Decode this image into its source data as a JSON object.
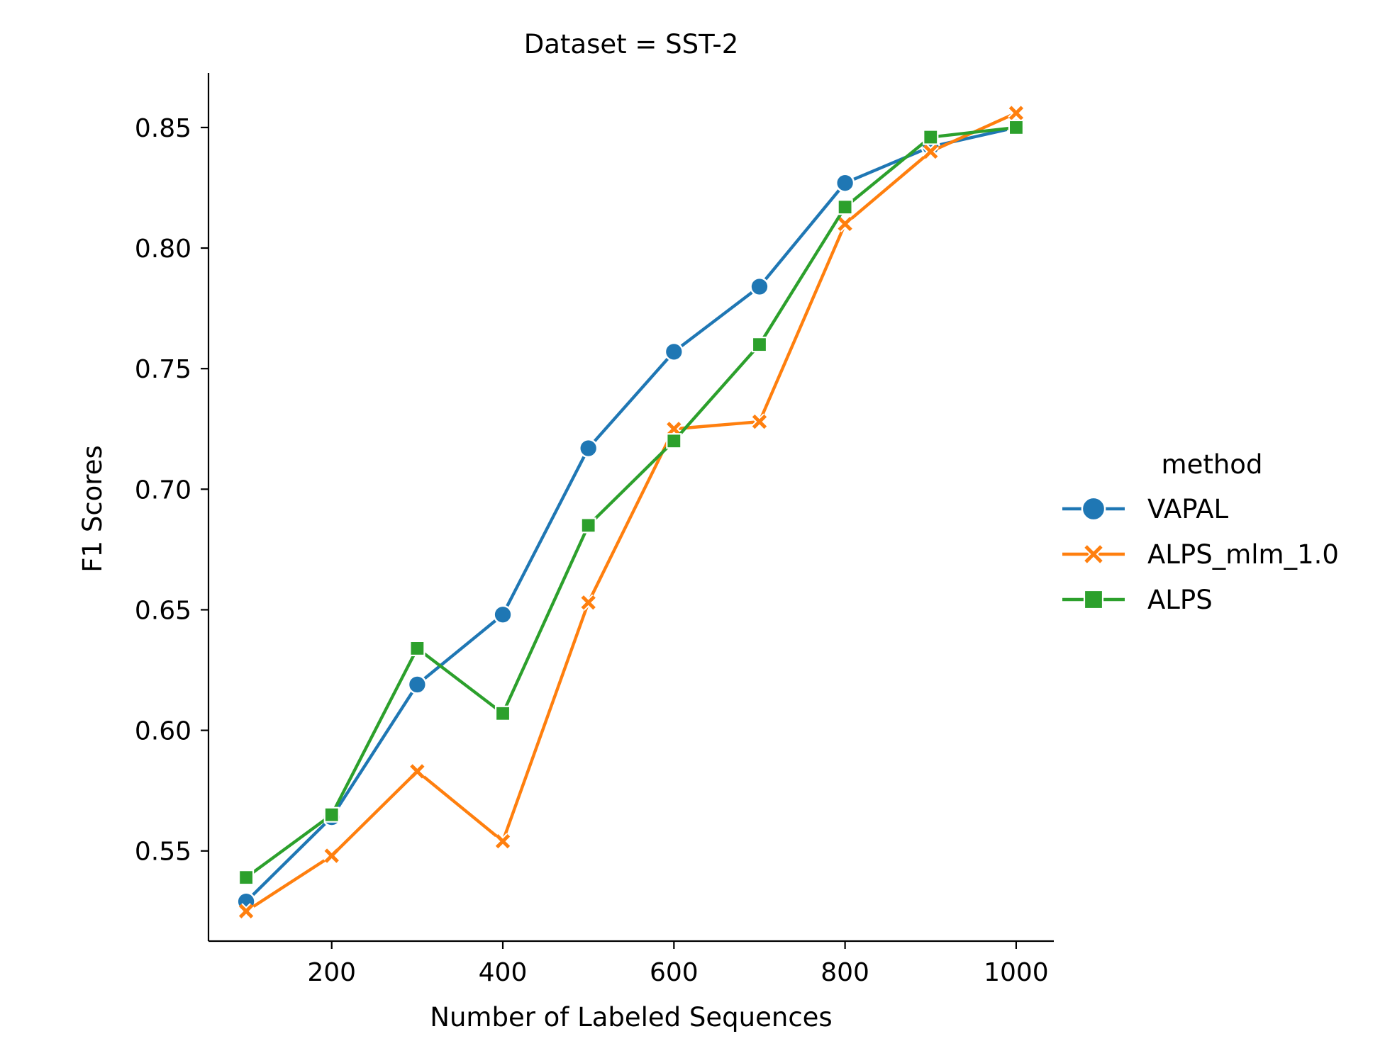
{
  "chart_data": {
    "type": "line",
    "title": "Dataset = SST-2",
    "xlabel": "Number of Labeled Sequences",
    "ylabel": "F1 Scores",
    "xlim": [
      56,
      1044
    ],
    "ylim": [
      0.5126,
      0.8726
    ],
    "xticks": [
      200,
      400,
      600,
      800,
      1000
    ],
    "yticks": [
      0.55,
      0.6,
      0.65,
      0.7,
      0.75,
      0.8,
      0.85
    ],
    "grid": false,
    "legend": {
      "title": "method",
      "placement": "right"
    },
    "x": [
      100,
      200,
      300,
      400,
      500,
      600,
      700,
      800,
      900,
      1000
    ],
    "series": [
      {
        "name": "VAPAL",
        "color": "#1f77b4",
        "marker": "circle",
        "values": [
          0.529,
          0.564,
          0.619,
          0.648,
          0.717,
          0.757,
          0.784,
          0.827,
          0.842,
          0.85
        ]
      },
      {
        "name": "ALPS_mlm_1.0",
        "color": "#ff7f0e",
        "marker": "x",
        "values": [
          0.525,
          0.548,
          0.583,
          0.554,
          0.653,
          0.725,
          0.728,
          0.81,
          0.84,
          0.856
        ]
      },
      {
        "name": "ALPS",
        "color": "#2ca02c",
        "marker": "square",
        "values": [
          0.539,
          0.565,
          0.634,
          0.607,
          0.685,
          0.72,
          0.76,
          0.817,
          0.846,
          0.85
        ]
      }
    ]
  }
}
